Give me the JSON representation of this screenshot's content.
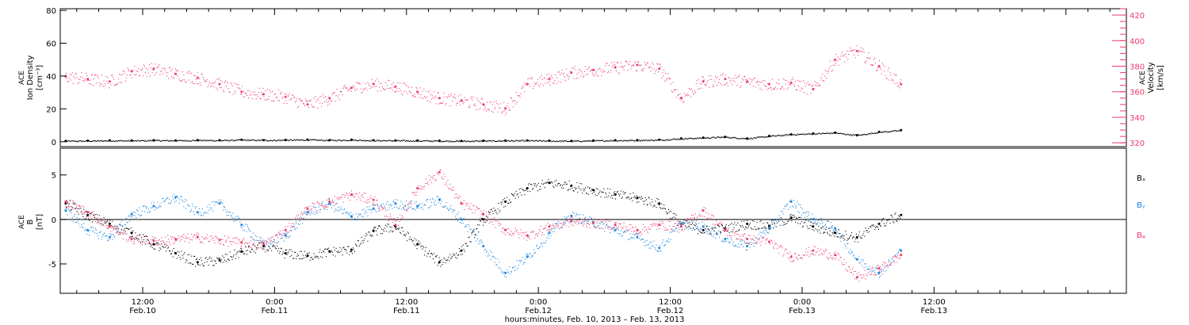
{
  "colors": {
    "black": "#000000",
    "pink": "#ef3a6a",
    "blue": "#1a85e0"
  },
  "x_axis": {
    "caption": "hours:minutes, Feb. 10, 2013 – Feb. 13, 2013",
    "range_hours": [
      4.5,
      101.5
    ],
    "ticks": [
      {
        "hour": 12,
        "time": "12:00",
        "date": "Feb.10"
      },
      {
        "hour": 24,
        "time": "0:00",
        "date": "Feb.11"
      },
      {
        "hour": 36,
        "time": "12:00",
        "date": "Feb.11"
      },
      {
        "hour": 48,
        "time": "0:00",
        "date": "Feb.12"
      },
      {
        "hour": 60,
        "time": "12:00",
        "date": "Feb.12"
      },
      {
        "hour": 72,
        "time": "0:00",
        "date": "Feb.13"
      },
      {
        "hour": 84,
        "time": "12:00",
        "date": "Feb.13"
      }
    ]
  },
  "chart_data": [
    {
      "type": "scatter",
      "panel": "plasma",
      "ylabel_lines": [
        "ACE",
        "Ion Density",
        "[cm⁻³]"
      ],
      "ylim": [
        -3,
        81
      ],
      "yticks": [
        0,
        20,
        40,
        60,
        80
      ],
      "right_axis": {
        "label_lines": [
          "ACE",
          "Velocity",
          "[km/s]"
        ],
        "ylim": [
          317,
          425
        ],
        "yticks": [
          320,
          340,
          360,
          380,
          400,
          420
        ]
      },
      "x_hours": [
        5,
        7,
        9,
        11,
        13,
        15,
        17,
        19,
        21,
        23,
        25,
        27,
        29,
        31,
        33,
        35,
        37,
        39,
        41,
        43,
        45,
        47,
        49,
        51,
        53,
        55,
        57,
        59,
        61,
        63,
        65,
        67,
        69,
        71,
        73,
        75,
        77,
        79,
        81
      ],
      "series": [
        {
          "name": "Ion Density",
          "color_key": "black",
          "axis": "left",
          "values": [
            0.5,
            0.6,
            0.8,
            0.7,
            0.9,
            0.8,
            1.0,
            0.9,
            1.2,
            1.0,
            1.1,
            1.3,
            1.0,
            1.2,
            0.9,
            0.8,
            0.7,
            0.6,
            0.5,
            0.6,
            0.7,
            0.8,
            0.6,
            0.5,
            0.7,
            0.9,
            1.0,
            1.2,
            2.0,
            2.5,
            3.0,
            2.0,
            3.5,
            4.5,
            5.0,
            5.5,
            4.0,
            6.0,
            7.0
          ]
        },
        {
          "name": "Velocity",
          "color_key": "pink",
          "axis": "right",
          "values": [
            372,
            370,
            368,
            376,
            378,
            374,
            371,
            366,
            360,
            358,
            356,
            350,
            355,
            363,
            366,
            364,
            360,
            355,
            353,
            350,
            347,
            366,
            370,
            375,
            377,
            379,
            381,
            378,
            355,
            368,
            370,
            368,
            366,
            367,
            362,
            385,
            392,
            380,
            366
          ]
        }
      ]
    },
    {
      "type": "scatter",
      "panel": "imf",
      "ylabel_lines": [
        "ACE",
        "B",
        "[nT]"
      ],
      "ylim": [
        -8.3,
        8
      ],
      "yticks": [
        -5,
        0,
        5
      ],
      "zero_line": true,
      "x_hours": [
        5,
        7,
        9,
        11,
        13,
        15,
        17,
        19,
        21,
        23,
        25,
        27,
        29,
        31,
        33,
        35,
        37,
        39,
        41,
        43,
        45,
        47,
        49,
        51,
        53,
        55,
        57,
        59,
        61,
        63,
        65,
        67,
        69,
        71,
        73,
        75,
        77,
        79,
        81
      ],
      "series": [
        {
          "name": "Bₓ",
          "color_key": "black",
          "values": [
            1.8,
            0.5,
            -0.5,
            -1.5,
            -2.8,
            -3.8,
            -4.8,
            -4.6,
            -3.6,
            -3.0,
            -3.8,
            -4.1,
            -3.6,
            -3.4,
            -1.3,
            -0.8,
            -2.8,
            -4.8,
            -3.5,
            0.0,
            2.0,
            3.5,
            4.1,
            3.8,
            3.3,
            2.8,
            2.4,
            1.8,
            -0.5,
            -1.2,
            -1.0,
            -0.5,
            -0.7,
            0.2,
            -0.8,
            -1.5,
            -2.0,
            -0.5,
            0.5
          ]
        },
        {
          "name": "Bᵧ",
          "color_key": "blue",
          "values": [
            1.0,
            -1.2,
            -2.0,
            0.6,
            1.5,
            2.5,
            0.8,
            1.8,
            -0.6,
            -2.8,
            -1.8,
            0.8,
            1.8,
            0.3,
            1.2,
            1.8,
            1.5,
            2.2,
            0.0,
            -3.0,
            -6.0,
            -4.2,
            -1.5,
            0.4,
            -0.3,
            -1.2,
            -2.0,
            -3.2,
            -0.5,
            -0.8,
            -2.2,
            -3.0,
            -1.0,
            2.0,
            0.0,
            -1.0,
            -4.5,
            -6.0,
            -3.5
          ]
        },
        {
          "name": "Bᵩ",
          "color_key": "pink",
          "values": [
            2.0,
            0.8,
            -0.8,
            -2.2,
            -2.4,
            -2.2,
            -2.0,
            -2.3,
            -2.6,
            -2.8,
            -1.2,
            1.2,
            2.0,
            2.8,
            2.2,
            -0.6,
            3.5,
            5.3,
            1.8,
            0.6,
            -1.2,
            -1.8,
            -0.8,
            -0.2,
            -0.4,
            -0.6,
            -1.2,
            -0.6,
            -0.8,
            1.0,
            -1.2,
            -2.2,
            -2.5,
            -4.2,
            -3.5,
            -4.0,
            -6.5,
            -5.5,
            -4.0
          ]
        }
      ]
    }
  ]
}
